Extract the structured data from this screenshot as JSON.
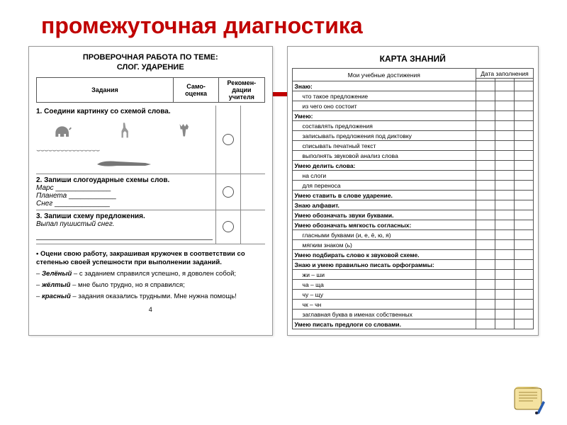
{
  "title": "промежуточная диагностика",
  "colors": {
    "accent": "#c00000",
    "border": "#555555",
    "bg": "#ffffff"
  },
  "left": {
    "heading1": "ПРОВЕРОЧНАЯ РАБОТА ПО ТЕМЕ:",
    "heading2": "СЛОГ. УДАРЕНИЕ",
    "cols": {
      "c1": "Задания",
      "c2": "Само-оценка",
      "c3": "Рекомен-дации учителя"
    },
    "task1_title": "1. Соедини картинку со схемой слова.",
    "task2_title": "2. Запиши слогоударные схемы слов.",
    "task2_words": [
      "Марс",
      "Планета",
      "Снег"
    ],
    "task3_title": "3. Запиши схему предложения.",
    "task3_sentence": "Выпал пушистый снег.",
    "instr_lead": "• Оцени свою работу, закрашивая кружочек в соответствии со степенью своей успешности при выполнении заданий.",
    "green_label": "Зелёный",
    "green_text": " – с заданием справился успешно, я доволен собой;",
    "yellow_label": "жёлтый",
    "yellow_text": " – мне было трудно, но я справился;",
    "red_label": "красный",
    "red_text": " – задания оказались трудными. Мне нужна помощь!",
    "page": "4"
  },
  "right": {
    "title": "КАРТА ЗНАНИЙ",
    "col_achieve": "Мои учебные достижения",
    "col_date": "Дата заполнения",
    "rows": [
      {
        "t": "Знаю:",
        "sec": true
      },
      {
        "t": "что такое предложение",
        "i": true
      },
      {
        "t": "из чего оно состоит",
        "i": true
      },
      {
        "t": "Умею:",
        "sec": true
      },
      {
        "t": "составлять предложения",
        "i": true
      },
      {
        "t": "записывать предложения под диктовку",
        "i": true
      },
      {
        "t": "списывать печатный текст",
        "i": true
      },
      {
        "t": "выполнять звуковой анализ слова",
        "i": true
      },
      {
        "t": "Умею делить слова:",
        "sec": true
      },
      {
        "t": "на слоги",
        "i": true
      },
      {
        "t": "для переноса",
        "i": true
      },
      {
        "t": "Умею ставить в слове ударение.",
        "sec": true
      },
      {
        "t": "Знаю алфавит.",
        "sec": true
      },
      {
        "t": "Умею обозначать звуки буквами.",
        "sec": true
      },
      {
        "t": "Умею обозначать мягкость согласных:",
        "sec": true
      },
      {
        "t": "гласными буквами (и, е, ё, ю, я)",
        "i": true
      },
      {
        "t": "мягким знаком (ь)",
        "i": true
      },
      {
        "t": "Умею подбирать слово к звуковой схеме.",
        "sec": true
      },
      {
        "t": "Знаю и умею правильно писать орфограммы:",
        "sec": true
      },
      {
        "t": "жи – ши",
        "i": true
      },
      {
        "t": "ча – ща",
        "i": true
      },
      {
        "t": "чу – щу",
        "i": true
      },
      {
        "t": "чк – чн",
        "i": true
      },
      {
        "t": "заглавная буква в именах собственных",
        "i": true
      },
      {
        "t": "Умею писать предлоги со словами.",
        "sec": true
      }
    ]
  }
}
